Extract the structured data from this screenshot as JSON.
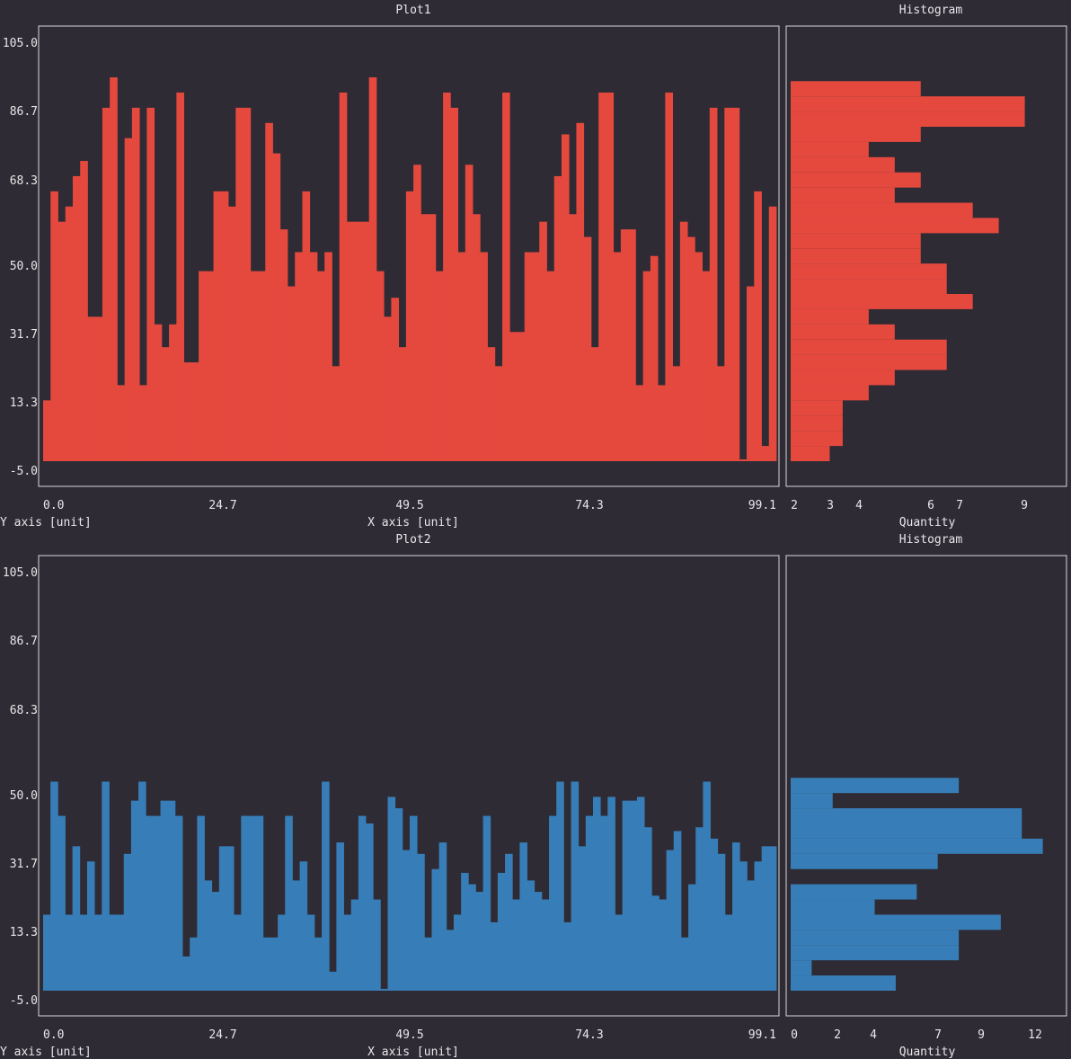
{
  "colors": {
    "background": "#2f2b35",
    "frame": "#d8d8d8",
    "text": "#e8e8e8",
    "plot1": "#e5493e",
    "plot2": "#377eb8"
  },
  "plots": [
    {
      "title": "Plot1",
      "hist_title": "Histogram",
      "xlabel": "X axis [unit]",
      "ylabel": "Y axis [unit]",
      "hist_xlabel": "Quantity",
      "y_ticks": [
        "105.0",
        "86.7",
        "68.3",
        "50.0",
        "31.7",
        "13.3",
        "-5.0"
      ],
      "x_ticks": [
        "0.0",
        "24.7",
        "49.5",
        "74.3",
        "99.1"
      ],
      "hist_ticks": [
        "2",
        "3",
        "4",
        "6",
        "7",
        "9"
      ]
    },
    {
      "title": "Plot2",
      "hist_title": "Histogram",
      "xlabel": "X axis [unit]",
      "ylabel": "Y axis [unit]",
      "hist_xlabel": "Quantity",
      "y_ticks": [
        "105.0",
        "86.7",
        "68.3",
        "50.0",
        "31.7",
        "13.3",
        "-5.0"
      ],
      "x_ticks": [
        "0.0",
        "24.7",
        "49.5",
        "74.3",
        "99.1"
      ],
      "hist_ticks": [
        "0",
        "2",
        "4",
        "7",
        "9",
        "12"
      ]
    }
  ],
  "chart_data": [
    {
      "type": "bar",
      "title": "Plot1",
      "xlabel": "X axis [unit]",
      "ylabel": "Y axis [unit]",
      "ylim": [
        -5.0,
        105.0
      ],
      "xlim": [
        0.0,
        99.1
      ],
      "x_start": 0.0,
      "x_step": 1.0,
      "values": [
        11,
        66,
        58,
        62,
        70,
        74,
        33,
        33,
        88,
        96,
        15,
        80,
        88,
        15,
        88,
        31,
        25,
        31,
        92,
        21,
        21,
        45,
        45,
        66,
        66,
        62,
        88,
        88,
        45,
        45,
        84,
        76,
        56,
        41,
        50,
        66,
        50,
        45,
        50,
        20,
        92,
        58,
        58,
        58,
        96,
        45,
        33,
        38,
        25,
        66,
        73,
        60,
        60,
        45,
        92,
        88,
        50,
        73,
        60,
        50,
        25,
        20,
        92,
        29,
        29,
        50,
        50,
        58,
        45,
        70,
        81,
        60,
        84,
        54,
        25,
        92,
        92,
        50,
        56,
        56,
        15,
        45,
        49,
        15,
        92,
        20,
        58,
        54,
        50,
        45,
        88,
        20,
        88,
        88,
        -5,
        41,
        66,
        -1,
        62
      ],
      "hist_bins": [
        [
          -5,
          -1,
          1.5
        ],
        [
          -1,
          3,
          2
        ],
        [
          3,
          7,
          2
        ],
        [
          7,
          11,
          2
        ],
        [
          11,
          15,
          3
        ],
        [
          15,
          19,
          4
        ],
        [
          19,
          23,
          6
        ],
        [
          23,
          27,
          6
        ],
        [
          27,
          31,
          4
        ],
        [
          31,
          35,
          3
        ],
        [
          35,
          39,
          7
        ],
        [
          39,
          43,
          6
        ],
        [
          43,
          47,
          6
        ],
        [
          47,
          51,
          5
        ],
        [
          51,
          55,
          5
        ],
        [
          55,
          59,
          8
        ],
        [
          59,
          63,
          7
        ],
        [
          63,
          67,
          4
        ],
        [
          67,
          71,
          5
        ],
        [
          71,
          75,
          4
        ],
        [
          75,
          79,
          3
        ],
        [
          79,
          83,
          5
        ],
        [
          83,
          87,
          9
        ],
        [
          87,
          91,
          9
        ],
        [
          91,
          95,
          5
        ]
      ]
    },
    {
      "type": "bar",
      "title": "Plot2",
      "xlabel": "X axis [unit]",
      "ylabel": "Y axis [unit]",
      "ylim": [
        -5.0,
        105.0
      ],
      "xlim": [
        0.0,
        99.1
      ],
      "x_start": 0.0,
      "x_step": 1.0,
      "values": [
        15,
        50,
        41,
        15,
        33,
        15,
        29,
        15,
        50,
        15,
        15,
        31,
        45,
        50,
        41,
        41,
        45,
        45,
        41,
        4,
        9,
        41,
        24,
        21,
        33,
        33,
        15,
        41,
        41,
        41,
        9,
        9,
        15,
        41,
        24,
        29,
        15,
        9,
        50,
        0,
        34,
        15,
        19,
        41,
        39,
        19,
        -5,
        46,
        43,
        32,
        41,
        31,
        9,
        27,
        34,
        11,
        15,
        26,
        23,
        21,
        41,
        13,
        26,
        31,
        19,
        34,
        24,
        21,
        19,
        41,
        50,
        13,
        50,
        33,
        41,
        46,
        41,
        46,
        15,
        45,
        45,
        46,
        38,
        20,
        19,
        32,
        37,
        9,
        23,
        38,
        50,
        35,
        31,
        15,
        34,
        29,
        24,
        29,
        33,
        33
      ],
      "hist_bins": [
        [
          -5,
          -1,
          5
        ],
        [
          -1,
          3,
          1
        ],
        [
          3,
          7,
          8
        ],
        [
          7,
          11,
          8
        ],
        [
          11,
          15,
          10
        ],
        [
          15,
          19,
          4
        ],
        [
          19,
          23,
          6
        ],
        [
          23,
          27,
          0
        ],
        [
          27,
          31,
          7
        ],
        [
          31,
          35,
          12
        ],
        [
          35,
          39,
          11
        ],
        [
          39,
          43,
          11
        ],
        [
          43,
          47,
          2
        ],
        [
          47,
          51,
          8
        ]
      ]
    }
  ]
}
